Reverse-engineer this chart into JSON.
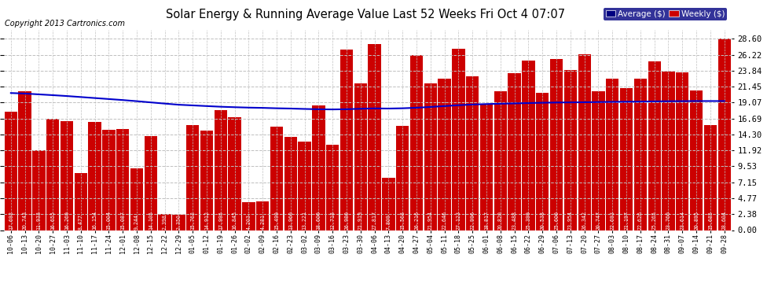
{
  "title": "Solar Energy & Running Average Value Last 52 Weeks Fri Oct 4 07:07",
  "copyright": "Copyright 2013 Cartronics.com",
  "bar_color": "#cc0000",
  "avg_line_color": "#0000cc",
  "bg_color": "#ffffff",
  "grid_color": "#c0c0c0",
  "ylabel_right": [
    "28.60",
    "26.22",
    "23.84",
    "21.45",
    "19.07",
    "16.69",
    "14.30",
    "11.92",
    "9.53",
    "7.15",
    "4.77",
    "2.38",
    "0.00"
  ],
  "ylim": [
    0,
    30.0
  ],
  "legend_bg_color": "#000080",
  "legend_weekly_color": "#cc0000",
  "categories": [
    "10-06",
    "10-13",
    "10-20",
    "10-27",
    "11-03",
    "11-10",
    "11-17",
    "11-24",
    "12-01",
    "12-08",
    "12-15",
    "12-22",
    "12-29",
    "01-05",
    "01-12",
    "01-19",
    "01-26",
    "02-02",
    "02-09",
    "02-16",
    "02-23",
    "03-02",
    "03-09",
    "03-16",
    "03-23",
    "03-30",
    "04-06",
    "04-13",
    "04-20",
    "04-27",
    "05-04",
    "05-11",
    "05-18",
    "05-25",
    "06-01",
    "06-08",
    "06-15",
    "06-22",
    "06-29",
    "07-06",
    "07-13",
    "07-20",
    "07-27",
    "08-03",
    "08-10",
    "08-17",
    "08-24",
    "08-31",
    "09-07",
    "09-14",
    "09-21",
    "09-28"
  ],
  "weekly_values": [
    17.692,
    20.743,
    11.933,
    16.655,
    16.269,
    8.477,
    16.154,
    15.004,
    15.087,
    9.244,
    14.105,
    2.398,
    2.35,
    15.762,
    14.912,
    17.995,
    16.845,
    4.203,
    4.281,
    15.499,
    13.96,
    13.221,
    18.6,
    12.718,
    26.98,
    21.919,
    27.817,
    7.809,
    15.568,
    26.216,
    21.954,
    22.646,
    27.123,
    22.996,
    18.817,
    20.82,
    23.488,
    25.399,
    20.538,
    25.6,
    23.954,
    26.342,
    20.747,
    22.693,
    21.197,
    22.626,
    25.265,
    23.76,
    23.614,
    20.895,
    15.685,
    28.604
  ],
  "avg_values": [
    20.5,
    20.42,
    20.3,
    20.18,
    20.05,
    19.9,
    19.75,
    19.6,
    19.45,
    19.28,
    19.1,
    18.92,
    18.75,
    18.65,
    18.55,
    18.45,
    18.38,
    18.32,
    18.28,
    18.22,
    18.18,
    18.12,
    18.07,
    18.05,
    18.08,
    18.15,
    18.2,
    18.18,
    18.22,
    18.3,
    18.42,
    18.55,
    18.68,
    18.78,
    18.85,
    18.9,
    18.95,
    19.0,
    19.05,
    19.08,
    19.1,
    19.12,
    19.15,
    19.18,
    19.2,
    19.22,
    19.25,
    19.27,
    19.28,
    19.3,
    19.3,
    19.3
  ]
}
